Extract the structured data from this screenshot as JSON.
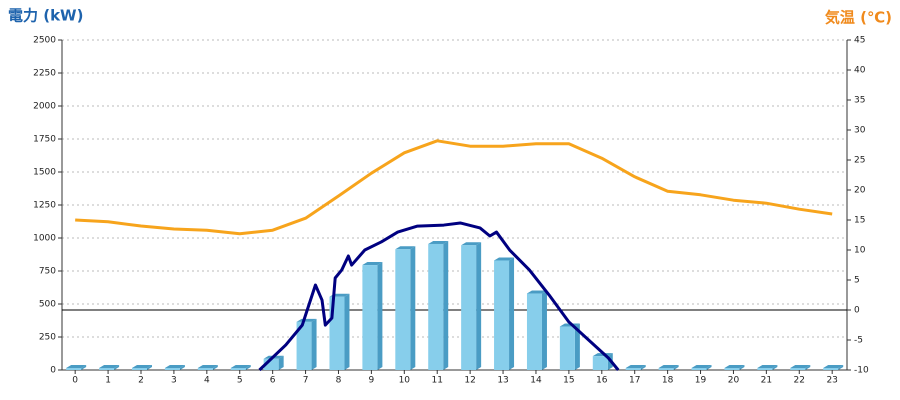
{
  "chart_data": {
    "type": "bar",
    "ylabel": "電力 (kW)",
    "ylabel_color": "#1e63ad",
    "y2label": "気温 (℃)",
    "y2label_color": "#f08a1c",
    "x": [
      0,
      1,
      2,
      3,
      4,
      5,
      6,
      7,
      8,
      9,
      10,
      11,
      12,
      13,
      14,
      15,
      16,
      17,
      18,
      19,
      20,
      21,
      22,
      23
    ],
    "xlim": [
      -0.4,
      23.45
    ],
    "ylim": [
      0,
      2500
    ],
    "yticks": [
      0,
      250,
      500,
      750,
      1000,
      1250,
      1500,
      1750,
      2000,
      2250,
      2500
    ],
    "y2lim": [
      -10,
      45
    ],
    "y2ticks": [
      -10,
      -5,
      0,
      5,
      10,
      15,
      20,
      25,
      30,
      35,
      40,
      45
    ],
    "y2_hline": 0,
    "grid": true,
    "series": [
      {
        "type": "bar",
        "color": "#87ceeb",
        "side_color": "#4a9cc4",
        "values": [
          15,
          15,
          15,
          15,
          15,
          15,
          85,
          365,
          555,
          795,
          915,
          955,
          945,
          830,
          580,
          330,
          105,
          15,
          15,
          15,
          15,
          15,
          15,
          15
        ]
      },
      {
        "type": "line",
        "axis": "y2",
        "color": "#f7a41c",
        "values": [
          15,
          14.7,
          14,
          13.5,
          13.3,
          12.7,
          13.3,
          15.3,
          19,
          22.8,
          26.2,
          28.2,
          27.3,
          27.3,
          27.7,
          27.7,
          25.3,
          22.2,
          19.8,
          19.2,
          18.3,
          17.8,
          16.8,
          16
        ]
      },
      {
        "type": "line",
        "color": "#000080",
        "x": [
          5.6,
          6.4,
          6.9,
          7.3,
          7.5,
          7.6,
          7.8,
          7.9,
          8.1,
          8.3,
          8.4,
          8.8,
          9.3,
          9.8,
          10.4,
          11.2,
          11.7,
          12.3,
          12.6,
          12.8,
          13.2,
          13.8,
          14.4,
          15.0,
          15.6,
          16.2,
          16.5
        ],
        "values": [
          0,
          190,
          340,
          644,
          530,
          340,
          394,
          697,
          758,
          864,
          795,
          909,
          970,
          1045,
          1090,
          1098,
          1114,
          1076,
          1015,
          1045,
          909,
          758,
          568,
          364,
          227,
          91,
          0
        ]
      }
    ]
  }
}
